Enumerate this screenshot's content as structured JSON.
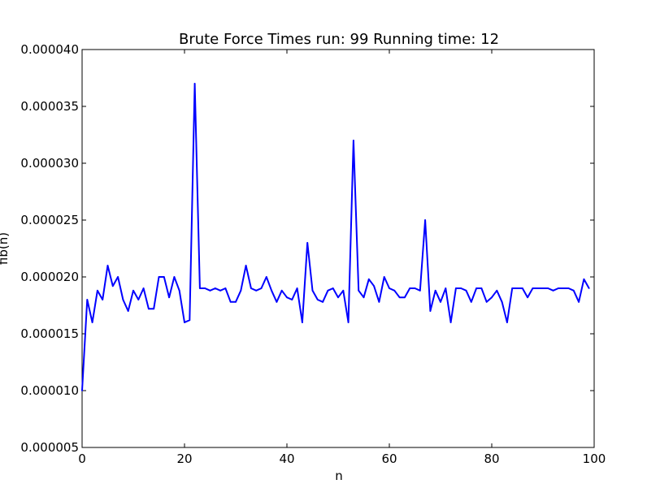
{
  "chart_data": {
    "type": "line",
    "title": "Brute Force Times run: 99 Running time: 12",
    "xlabel": "n",
    "ylabel": "fib(n)",
    "xlim": [
      0,
      100
    ],
    "ylim": [
      5e-06,
      4e-05
    ],
    "grid": false,
    "x_ticks": [
      0,
      20,
      40,
      60,
      80,
      100
    ],
    "x_tick_labels": [
      "0",
      "20",
      "40",
      "60",
      "80",
      "100"
    ],
    "y_ticks": [
      5e-06,
      1e-05,
      1.5e-05,
      2e-05,
      2.5e-05,
      3e-05,
      3.5e-05,
      4e-05
    ],
    "y_tick_labels": [
      "0.000005",
      "0.000010",
      "0.000015",
      "0.000020",
      "0.000025",
      "0.000030",
      "0.000035",
      "0.000040"
    ],
    "series": [
      {
        "name": "brute force",
        "color": "#0000ff",
        "x": [
          0,
          1,
          2,
          3,
          4,
          5,
          6,
          7,
          8,
          9,
          10,
          11,
          12,
          13,
          14,
          15,
          16,
          17,
          18,
          19,
          20,
          21,
          22,
          23,
          24,
          25,
          26,
          27,
          28,
          29,
          30,
          31,
          32,
          33,
          34,
          35,
          36,
          37,
          38,
          39,
          40,
          41,
          42,
          43,
          44,
          45,
          46,
          47,
          48,
          49,
          50,
          51,
          52,
          53,
          54,
          55,
          56,
          57,
          58,
          59,
          60,
          61,
          62,
          63,
          64,
          65,
          66,
          67,
          68,
          69,
          70,
          71,
          72,
          73,
          74,
          75,
          76,
          77,
          78,
          79,
          80,
          81,
          82,
          83,
          84,
          85,
          86,
          87,
          88,
          89,
          90,
          91,
          92,
          93,
          94,
          95,
          96,
          97,
          98,
          99
        ],
        "values": [
          1e-05,
          1.8e-05,
          1.6e-05,
          1.88e-05,
          1.8e-05,
          2.1e-05,
          1.92e-05,
          2e-05,
          1.8e-05,
          1.7e-05,
          1.88e-05,
          1.8e-05,
          1.9e-05,
          1.72e-05,
          1.72e-05,
          2e-05,
          2e-05,
          1.82e-05,
          2e-05,
          1.88e-05,
          1.6e-05,
          1.62e-05,
          3.7e-05,
          1.9e-05,
          1.9e-05,
          1.88e-05,
          1.9e-05,
          1.88e-05,
          1.9e-05,
          1.78e-05,
          1.78e-05,
          1.88e-05,
          2.1e-05,
          1.9e-05,
          1.88e-05,
          1.9e-05,
          2e-05,
          1.88e-05,
          1.78e-05,
          1.88e-05,
          1.82e-05,
          1.8e-05,
          1.9e-05,
          1.6e-05,
          2.3e-05,
          1.88e-05,
          1.8e-05,
          1.78e-05,
          1.88e-05,
          1.9e-05,
          1.82e-05,
          1.88e-05,
          1.6e-05,
          3.2e-05,
          1.88e-05,
          1.82e-05,
          1.98e-05,
          1.92e-05,
          1.78e-05,
          2e-05,
          1.9e-05,
          1.88e-05,
          1.82e-05,
          1.82e-05,
          1.9e-05,
          1.9e-05,
          1.88e-05,
          2.5e-05,
          1.7e-05,
          1.88e-05,
          1.78e-05,
          1.9e-05,
          1.6e-05,
          1.9e-05,
          1.9e-05,
          1.88e-05,
          1.78e-05,
          1.9e-05,
          1.9e-05,
          1.78e-05,
          1.82e-05,
          1.88e-05,
          1.78e-05,
          1.6e-05,
          1.9e-05,
          1.9e-05,
          1.9e-05,
          1.82e-05,
          1.9e-05,
          1.9e-05,
          1.9e-05,
          1.9e-05,
          1.88e-05,
          1.9e-05,
          1.9e-05,
          1.9e-05,
          1.88e-05,
          1.78e-05,
          1.98e-05,
          1.9e-05
        ]
      }
    ]
  }
}
